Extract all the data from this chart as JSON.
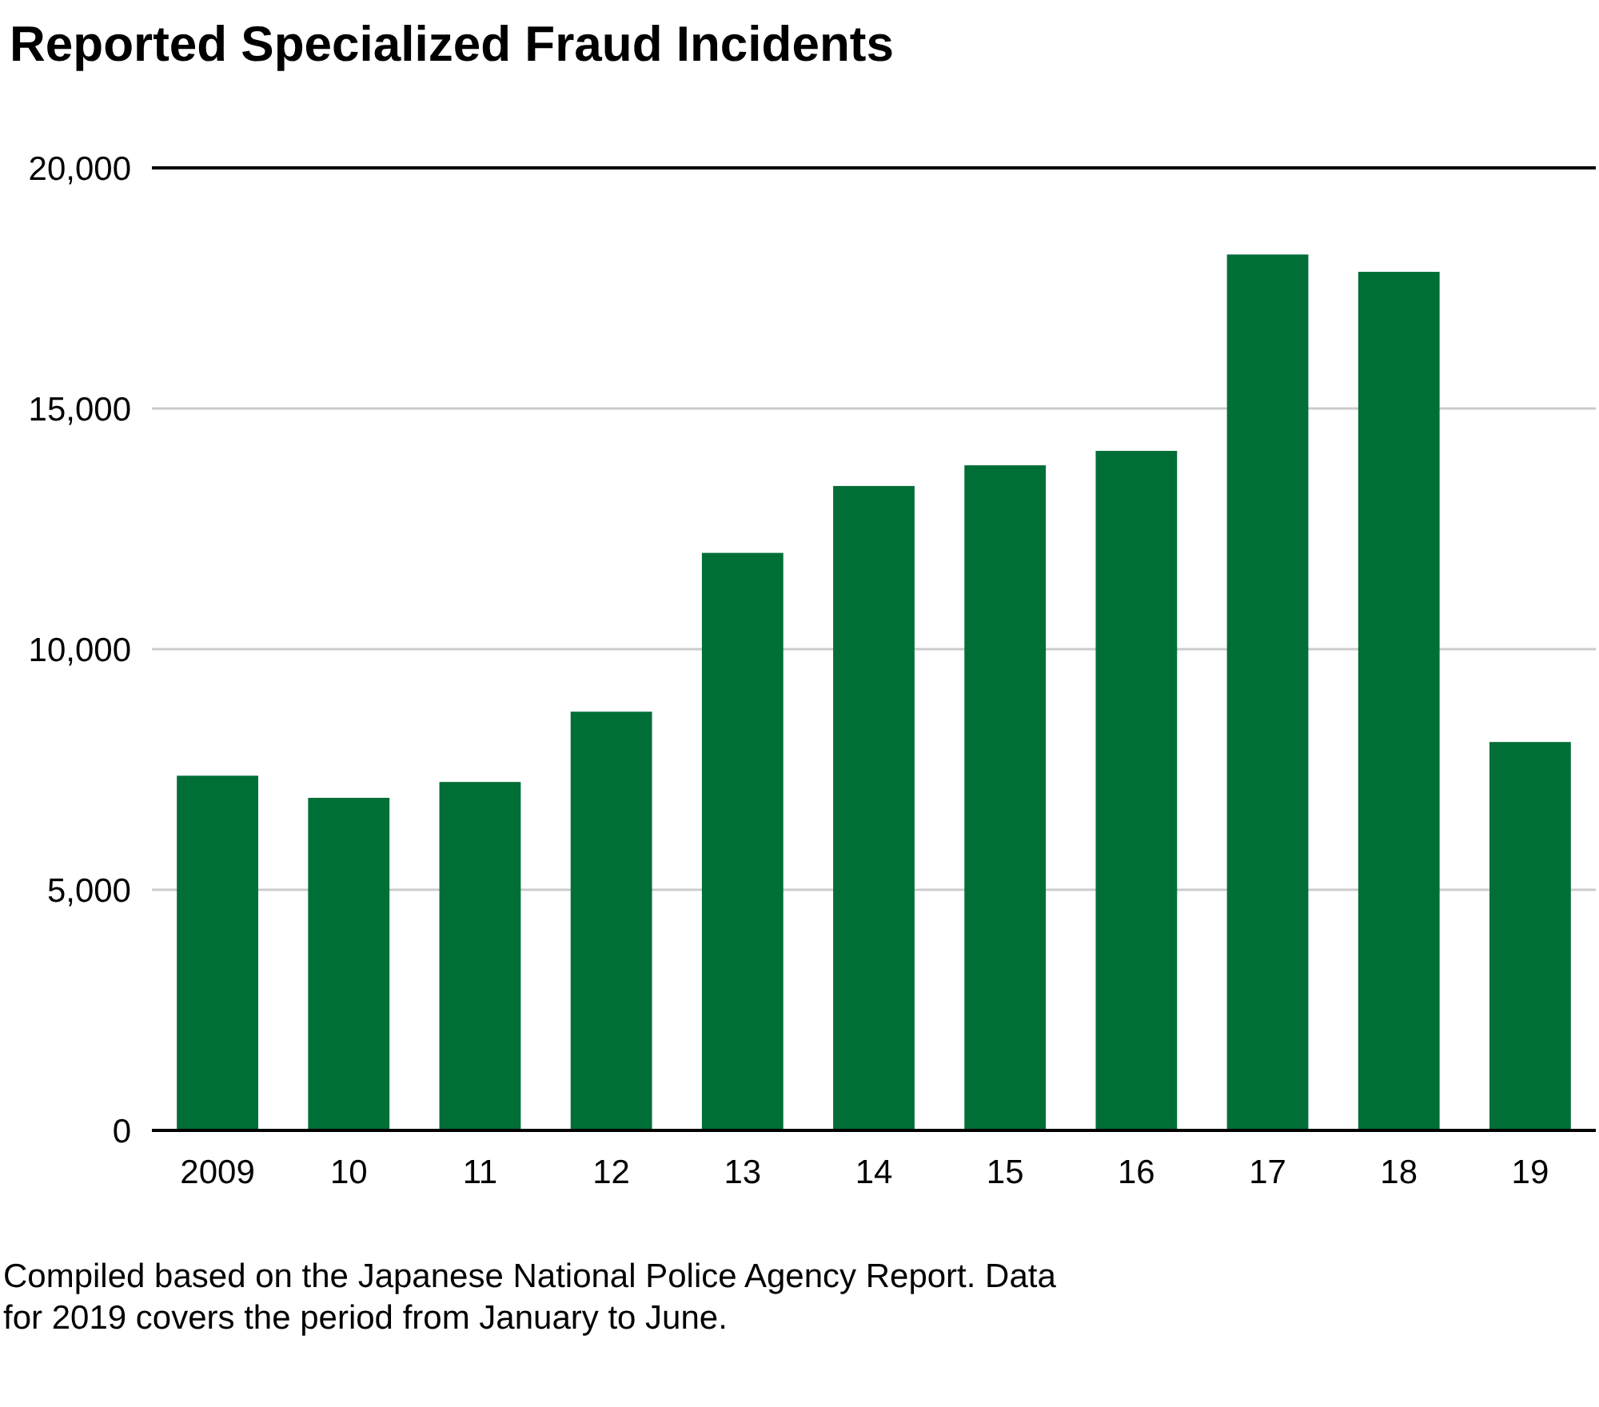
{
  "chart_data": {
    "type": "bar",
    "title": "Reported Specialized Fraud Incidents",
    "categories": [
      "2009",
      "10",
      "11",
      "12",
      "13",
      "14",
      "15",
      "16",
      "17",
      "18",
      "19"
    ],
    "values": [
      7370,
      6910,
      7240,
      8700,
      12000,
      13390,
      13820,
      14120,
      18200,
      17840,
      8070
    ],
    "color": "#006e37",
    "ylim": [
      0,
      20000
    ],
    "yticks": [
      {
        "value": 0,
        "label": "0"
      },
      {
        "value": 5000,
        "label": "5,000"
      },
      {
        "value": 10000,
        "label": "10,000"
      },
      {
        "value": 15000,
        "label": "15,000"
      },
      {
        "value": 20000,
        "label": "20,000"
      }
    ],
    "grid": "y",
    "annotations": [
      "Compiled based on the Japanese National Police Agency Report. Data for 2019 covers the period from January to June."
    ]
  }
}
